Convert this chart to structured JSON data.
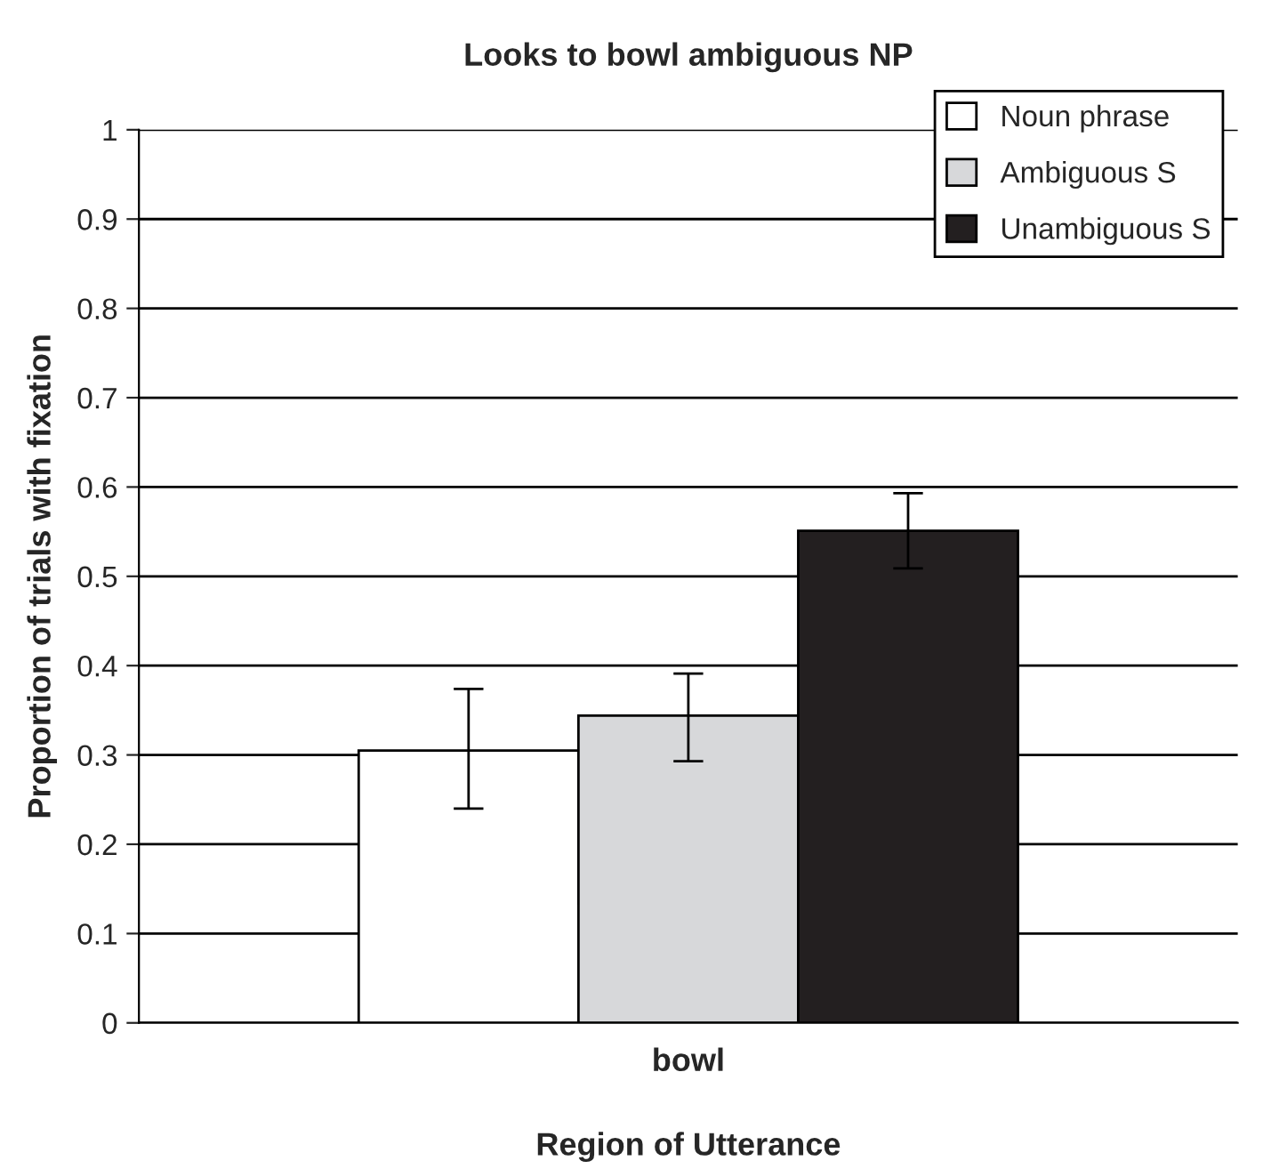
{
  "chart_data": {
    "type": "bar",
    "title": "Looks to bowl ambiguous NP",
    "xlabel": "Region of Utterance",
    "ylabel": "Proportion of trials with fixation",
    "categories": [
      "bowl"
    ],
    "series": [
      {
        "name": "Noun phrase",
        "color": "#ffffff",
        "values": [
          0.305
        ],
        "errors": [
          [
            0.24,
            0.374
          ]
        ]
      },
      {
        "name": "Ambiguous S",
        "color": "#d7d8da",
        "values": [
          0.344
        ],
        "errors": [
          [
            0.293,
            0.391
          ]
        ]
      },
      {
        "name": "Unambiguous S",
        "color": "#231f20",
        "values": [
          0.551
        ],
        "errors": [
          [
            0.509,
            0.593
          ]
        ]
      }
    ],
    "ylim": [
      0,
      1
    ],
    "yticks": [
      0,
      0.1,
      0.2,
      0.3,
      0.4,
      0.5,
      0.6,
      0.7,
      0.8,
      0.9,
      1
    ],
    "grid": "y",
    "legend": "top right"
  }
}
